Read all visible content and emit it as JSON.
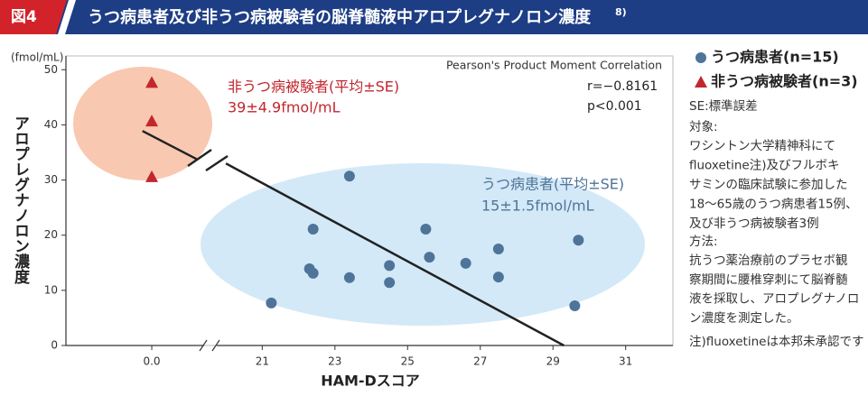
{
  "header": {
    "figure_label": "図4",
    "title": "うつ病患者及び非うつ病被験者の脳脊髄液中アロプレグナノロン濃度",
    "title_ref": "8)"
  },
  "chart_data": {
    "type": "scatter",
    "y_unit": "(fmol/mL)",
    "ylabel": "アロプレグナノロン濃度",
    "xlabel": "HAM-Dスコア",
    "xlim": [
      -2.3,
      32.3
    ],
    "x_break": [
      1.5,
      19.6
    ],
    "ylim": [
      0,
      52.5
    ],
    "xticks": [
      {
        "value": 0,
        "label": "0.0"
      },
      21,
      23,
      25,
      27,
      29,
      31
    ],
    "yticks": [
      0,
      10,
      20,
      30,
      40,
      50
    ],
    "series": [
      {
        "name": "うつ病患者(n=15)",
        "marker": "circle",
        "color": "#4f7499",
        "x": [
          21.25,
          22.3,
          22.4,
          22.4,
          23.4,
          23.4,
          24.5,
          24.5,
          25.5,
          25.6,
          26.6,
          27.5,
          27.5,
          29.7,
          29.6
        ],
        "values": [
          7.7,
          13.9,
          13.1,
          21.1,
          12.3,
          30.7,
          14.5,
          11.4,
          21.1,
          16.0,
          14.9,
          17.5,
          12.4,
          19.1,
          7.2
        ]
      },
      {
        "name": "非うつ病被験者(n=3)",
        "marker": "triangle",
        "color": "#c1272d",
        "x": [
          0,
          0,
          0
        ],
        "values": [
          47.7,
          40.7,
          30.6
        ]
      }
    ],
    "regression": {
      "color": "#222",
      "x": [
        -0.25,
        1.2,
        null,
        20.0,
        29.3
      ],
      "values": [
        38.9,
        33.8,
        null,
        33.0,
        0
      ]
    },
    "annotations": [
      "非うつ病被験者(平均±SE)",
      "39±4.9fmol/mL",
      "うつ病患者(平均±SE)",
      "15±1.5fmol/mL"
    ],
    "stats": {
      "method": "Pearson's Product Moment Correlation",
      "r": "r=−0.8161",
      "p": "p<0.001"
    }
  },
  "notes": {
    "se": "SE:標準誤差",
    "subject_label": "対象:",
    "subject_lines": [
      "ワシントン大学精神科にて",
      "fluoxetine注)及びフルボキ",
      "サミンの臨床試験に参加した",
      "18～65歳のうつ病患者15例、",
      "及び非うつ病被験者3例"
    ],
    "method_label": "方法:",
    "method_lines": [
      "抗うつ薬治療前のプラセボ観",
      "察期間に腰椎穿刺にて脳脊髄",
      "液を採取し、アロプレグナノロ",
      "ン濃度を測定した。"
    ],
    "footnote": "注)fluoxetineは本邦未承認です"
  }
}
